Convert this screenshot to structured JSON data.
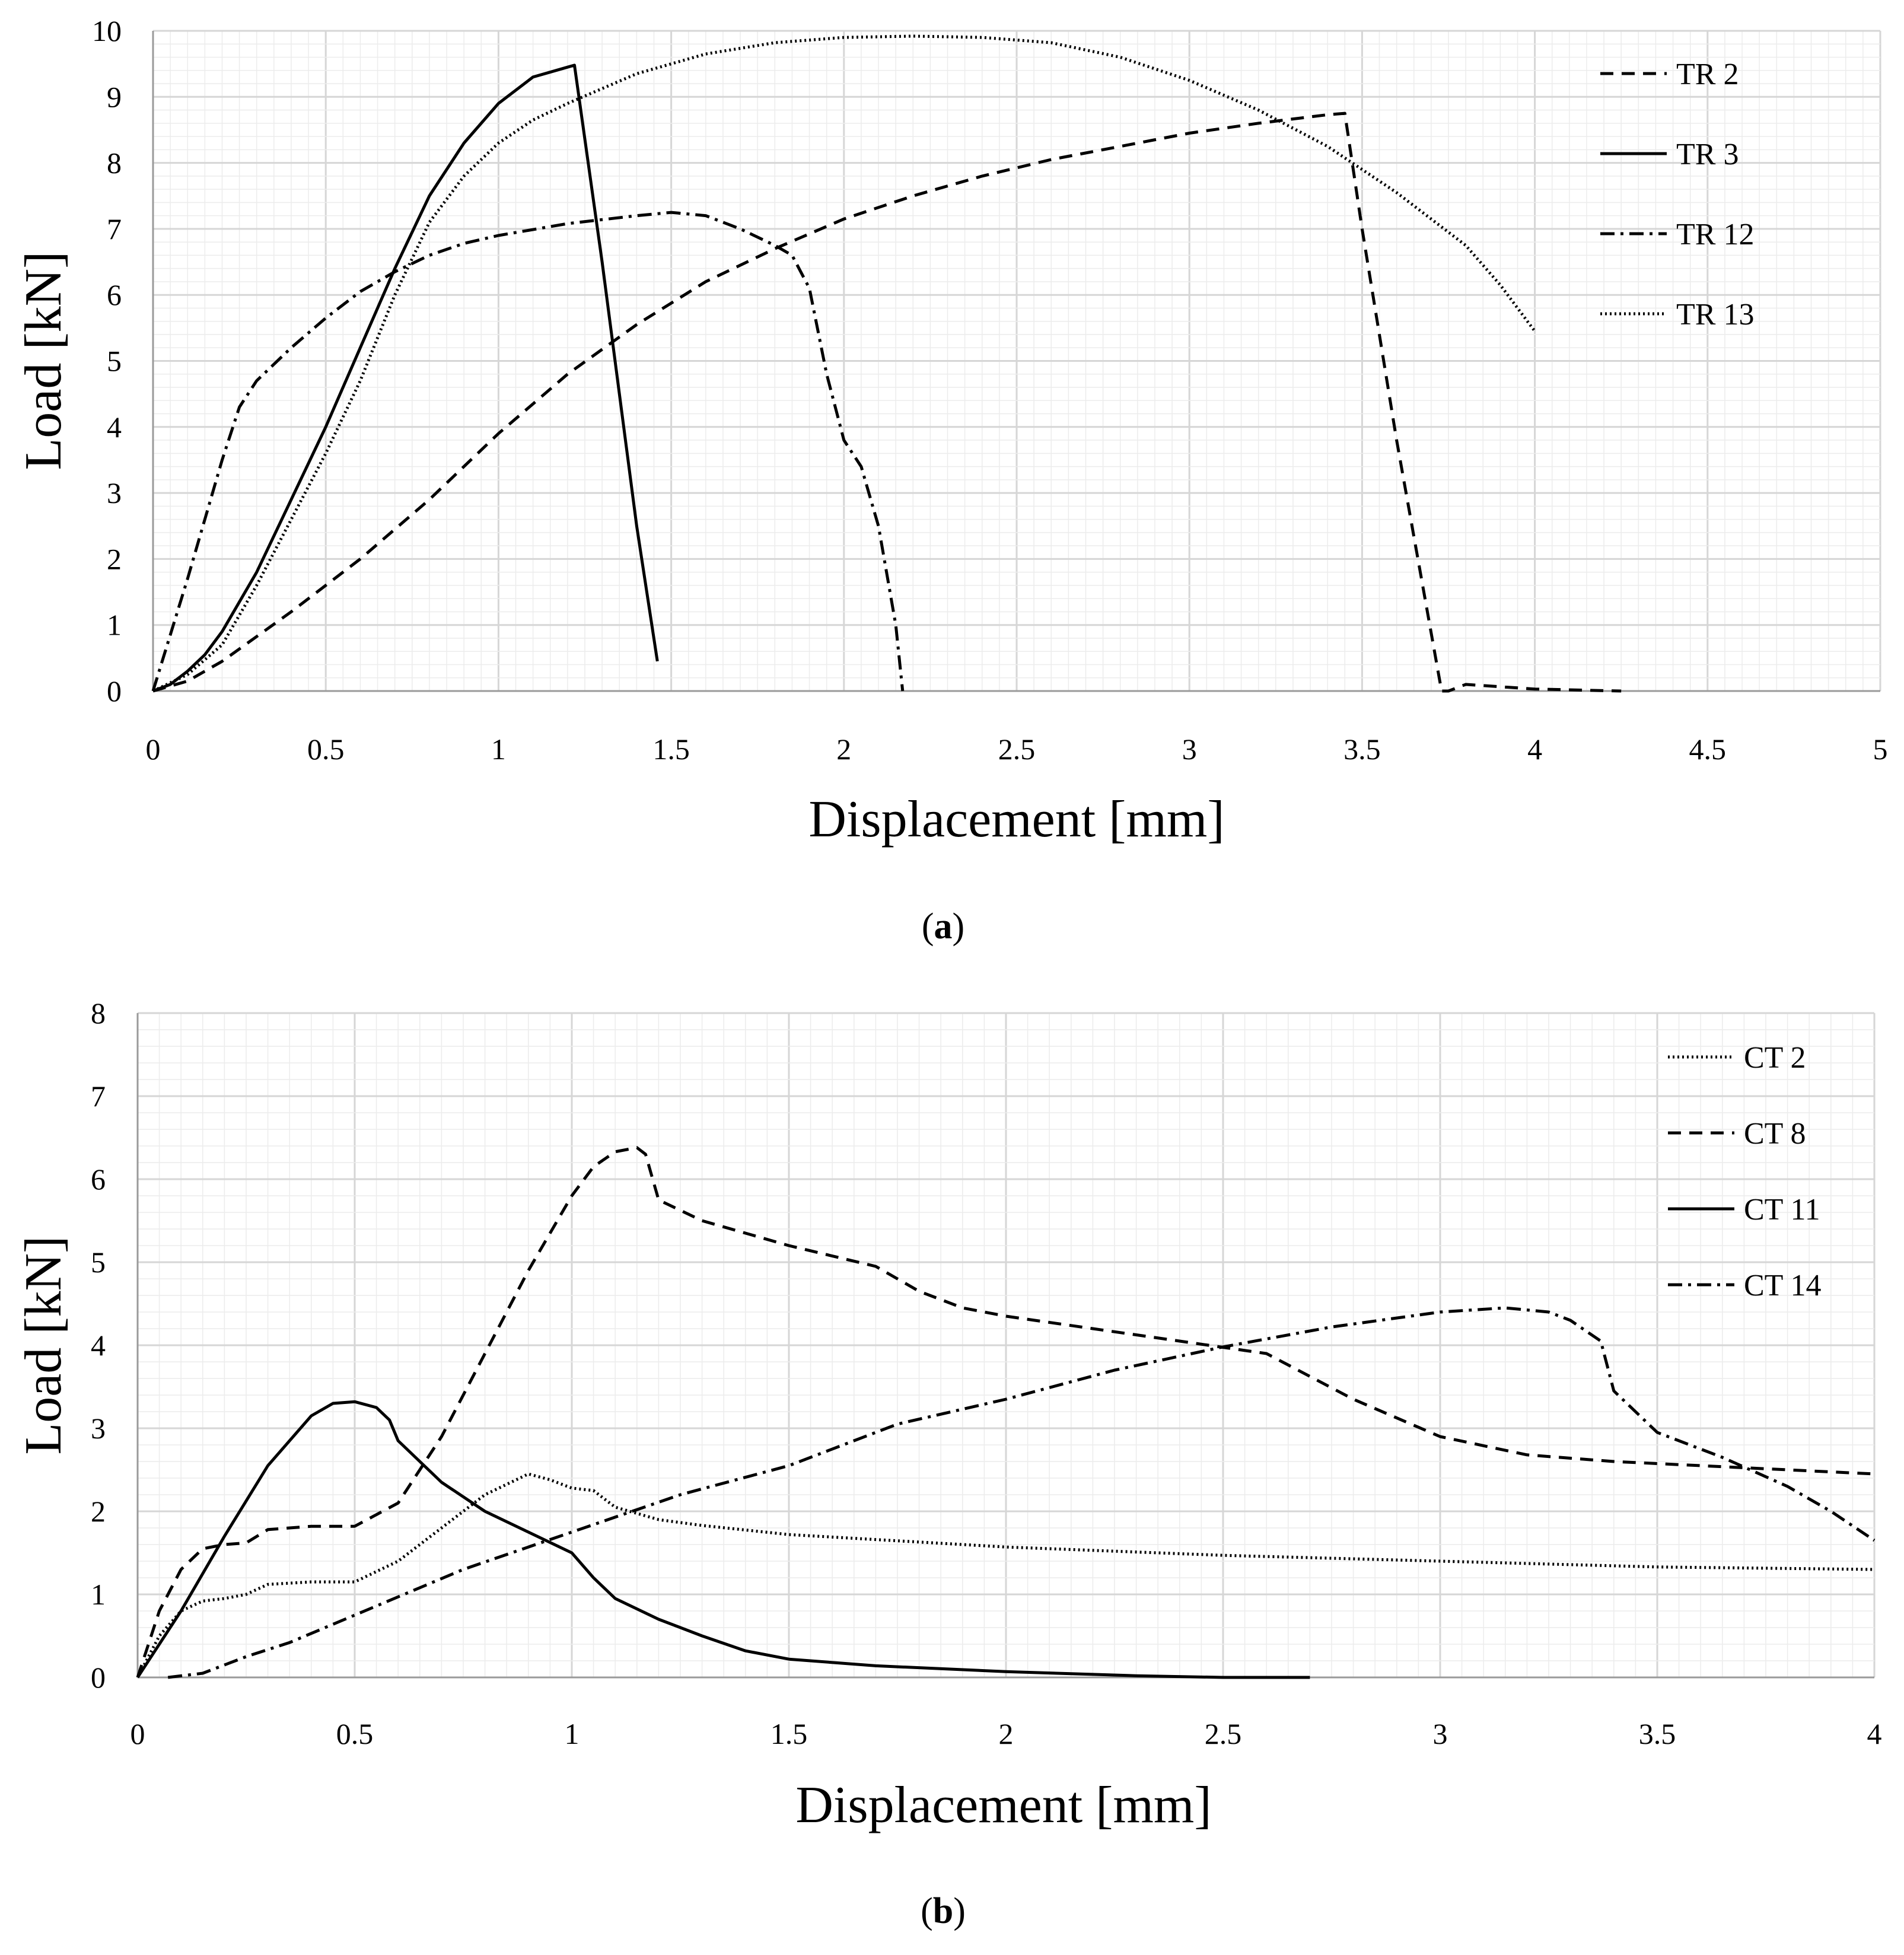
{
  "chart_data": [
    {
      "type": "line",
      "panel": "a",
      "caption_open": "(",
      "caption_letter": "a",
      "caption_close": ")",
      "xlabel": "Displacement [mm]",
      "ylabel": "Load [kN]",
      "xlim": [
        0,
        5
      ],
      "ylim": [
        0,
        10
      ],
      "xticks": [
        "0",
        "0.5",
        "1",
        "1.5",
        "2",
        "2.5",
        "3",
        "3.5",
        "4",
        "4.5",
        "5"
      ],
      "yticks": [
        "0",
        "1",
        "2",
        "3",
        "4",
        "5",
        "6",
        "7",
        "8",
        "9",
        "10"
      ],
      "grid": true,
      "legend_position": "top-right",
      "series": [
        {
          "name": "TR 2",
          "style": "dashed",
          "x": [
            0,
            0.1,
            0.2,
            0.4,
            0.6,
            0.8,
            1.0,
            1.2,
            1.4,
            1.6,
            1.8,
            2.0,
            2.2,
            2.4,
            2.6,
            2.8,
            3.0,
            3.2,
            3.4,
            3.45,
            3.5,
            3.6,
            3.73,
            3.75,
            3.8,
            4.0,
            4.25
          ],
          "y": [
            0,
            0.15,
            0.45,
            1.2,
            2.0,
            2.9,
            3.9,
            4.8,
            5.55,
            6.2,
            6.7,
            7.15,
            7.5,
            7.8,
            8.05,
            8.25,
            8.45,
            8.6,
            8.73,
            8.75,
            7.0,
            3.8,
            0,
            0,
            0.1,
            0.03,
            0
          ]
        },
        {
          "name": "TR 3",
          "style": "solid",
          "x": [
            0,
            0.05,
            0.1,
            0.15,
            0.2,
            0.3,
            0.4,
            0.5,
            0.6,
            0.7,
            0.8,
            0.9,
            1.0,
            1.1,
            1.2,
            1.22,
            1.3,
            1.4,
            1.46
          ],
          "y": [
            0,
            0.1,
            0.3,
            0.55,
            0.9,
            1.8,
            2.9,
            4.0,
            5.2,
            6.4,
            7.5,
            8.3,
            8.9,
            9.3,
            9.45,
            9.48,
            6.5,
            2.5,
            0.45
          ]
        },
        {
          "name": "TR 12",
          "style": "dashdot",
          "x": [
            0,
            0.1,
            0.2,
            0.25,
            0.3,
            0.4,
            0.5,
            0.6,
            0.7,
            0.8,
            0.9,
            1.0,
            1.2,
            1.4,
            1.5,
            1.6,
            1.7,
            1.8,
            1.85,
            1.9,
            1.95,
            2.0,
            2.05,
            2.1,
            2.15,
            2.17
          ],
          "y": [
            0,
            1.7,
            3.5,
            4.3,
            4.7,
            5.2,
            5.65,
            6.05,
            6.35,
            6.6,
            6.78,
            6.9,
            7.08,
            7.2,
            7.25,
            7.2,
            7.0,
            6.75,
            6.6,
            6.1,
            4.8,
            3.8,
            3.4,
            2.5,
            1.0,
            0
          ]
        },
        {
          "name": "TR 13",
          "style": "dotted",
          "x": [
            0,
            0.1,
            0.2,
            0.3,
            0.4,
            0.5,
            0.6,
            0.7,
            0.8,
            0.9,
            1.0,
            1.1,
            1.2,
            1.4,
            1.6,
            1.8,
            2.0,
            2.2,
            2.4,
            2.6,
            2.8,
            3.0,
            3.2,
            3.4,
            3.6,
            3.8,
            3.9,
            4.0
          ],
          "y": [
            0,
            0.25,
            0.7,
            1.6,
            2.6,
            3.6,
            4.7,
            6.0,
            7.1,
            7.8,
            8.3,
            8.65,
            8.9,
            9.35,
            9.65,
            9.82,
            9.9,
            9.92,
            9.9,
            9.82,
            9.6,
            9.25,
            8.8,
            8.25,
            7.55,
            6.75,
            6.15,
            5.45
          ]
        }
      ]
    },
    {
      "type": "line",
      "panel": "b",
      "caption_open": "(",
      "caption_letter": "b",
      "caption_close": ")",
      "xlabel": "Displacement [mm]",
      "ylabel": "Load [kN]",
      "xlim": [
        0,
        4
      ],
      "ylim": [
        0,
        8
      ],
      "xticks": [
        "0",
        "0.5",
        "1",
        "1.5",
        "2",
        "2.5",
        "3",
        "3.5",
        "4"
      ],
      "yticks": [
        "0",
        "1",
        "2",
        "3",
        "4",
        "5",
        "6",
        "7",
        "8"
      ],
      "grid": true,
      "legend_position": "top-right",
      "series": [
        {
          "name": "CT 2",
          "style": "dotted",
          "x": [
            0,
            0.05,
            0.1,
            0.15,
            0.2,
            0.25,
            0.3,
            0.4,
            0.5,
            0.6,
            0.7,
            0.8,
            0.9,
            0.95,
            1.0,
            1.05,
            1.1,
            1.2,
            1.3,
            1.5,
            2.0,
            2.5,
            3.0,
            3.5,
            4.0
          ],
          "y": [
            0,
            0.5,
            0.8,
            0.92,
            0.95,
            1.0,
            1.12,
            1.15,
            1.15,
            1.4,
            1.8,
            2.2,
            2.45,
            2.38,
            2.28,
            2.25,
            2.05,
            1.9,
            1.83,
            1.72,
            1.57,
            1.47,
            1.4,
            1.33,
            1.3
          ]
        },
        {
          "name": "CT 8",
          "style": "dashed",
          "x": [
            0,
            0.05,
            0.1,
            0.15,
            0.2,
            0.25,
            0.3,
            0.4,
            0.5,
            0.6,
            0.7,
            0.8,
            0.9,
            1.0,
            1.05,
            1.1,
            1.15,
            1.17,
            1.2,
            1.3,
            1.5,
            1.7,
            1.8,
            1.9,
            2.0,
            2.2,
            2.4,
            2.6,
            2.8,
            3.0,
            3.2,
            3.4,
            3.6,
            3.8,
            4.0
          ],
          "y": [
            0,
            0.8,
            1.3,
            1.55,
            1.6,
            1.62,
            1.78,
            1.82,
            1.82,
            2.1,
            2.9,
            3.9,
            4.9,
            5.8,
            6.15,
            6.33,
            6.38,
            6.3,
            5.75,
            5.5,
            5.2,
            4.95,
            4.65,
            4.45,
            4.35,
            4.2,
            4.05,
            3.9,
            3.35,
            2.9,
            2.68,
            2.6,
            2.55,
            2.5,
            2.45
          ]
        },
        {
          "name": "CT 11",
          "style": "solid",
          "x": [
            0,
            0.1,
            0.2,
            0.3,
            0.4,
            0.45,
            0.5,
            0.55,
            0.58,
            0.6,
            0.7,
            0.8,
            0.9,
            1.0,
            1.05,
            1.1,
            1.2,
            1.3,
            1.4,
            1.5,
            1.7,
            2.0,
            2.3,
            2.5,
            2.7
          ],
          "y": [
            0,
            0.8,
            1.7,
            2.55,
            3.15,
            3.3,
            3.32,
            3.25,
            3.1,
            2.85,
            2.35,
            2.0,
            1.75,
            1.5,
            1.2,
            0.95,
            0.7,
            0.5,
            0.32,
            0.22,
            0.14,
            0.07,
            0.02,
            0.0,
            0.0
          ]
        },
        {
          "name": "CT 14",
          "style": "dashdot",
          "x": [
            0.07,
            0.15,
            0.25,
            0.35,
            0.5,
            0.75,
            1.0,
            1.25,
            1.5,
            1.75,
            2.0,
            2.25,
            2.5,
            2.75,
            3.0,
            3.15,
            3.25,
            3.3,
            3.37,
            3.4,
            3.5,
            3.65,
            3.8,
            3.9,
            4.0
          ],
          "y": [
            0,
            0.05,
            0.25,
            0.42,
            0.75,
            1.3,
            1.75,
            2.2,
            2.55,
            3.05,
            3.35,
            3.7,
            3.98,
            4.22,
            4.4,
            4.45,
            4.4,
            4.3,
            4.05,
            3.45,
            2.95,
            2.65,
            2.3,
            2.0,
            1.65
          ]
        }
      ]
    }
  ]
}
